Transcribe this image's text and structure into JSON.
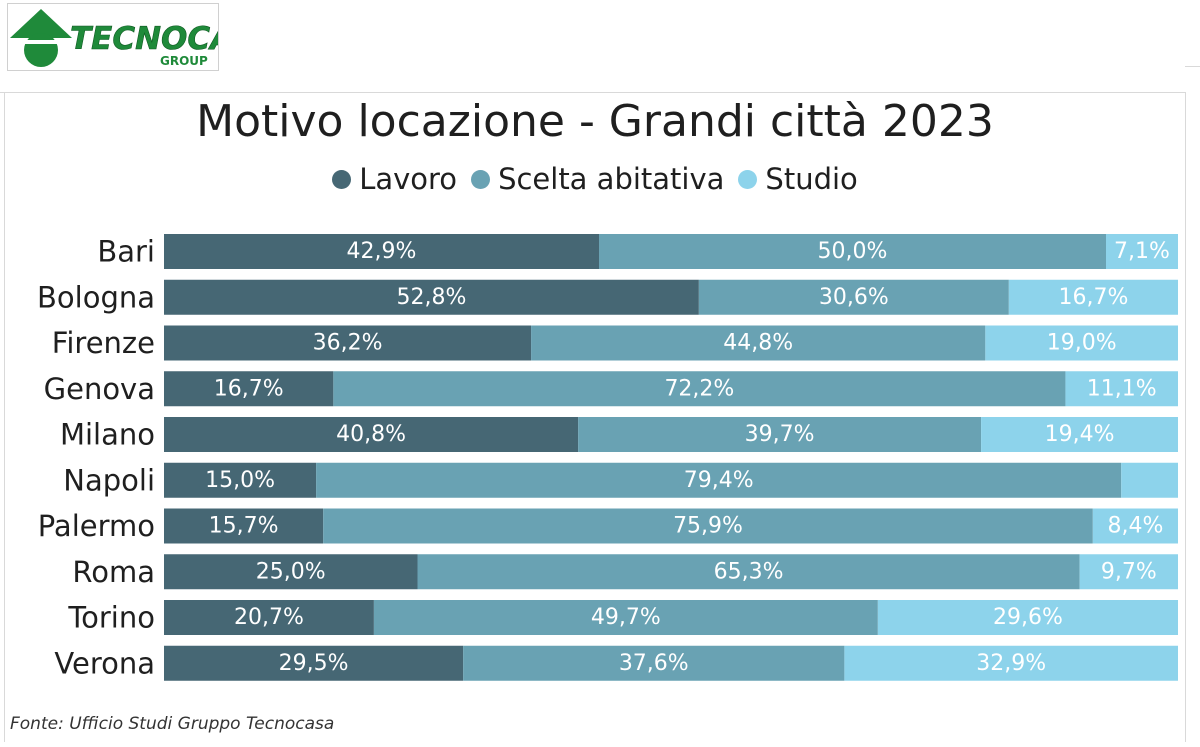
{
  "logo": {
    "brand": "TECNOCASA",
    "sub": "GROUP"
  },
  "source": "Fonte: Ufficio Studi Gruppo Tecnocasa",
  "colors": {
    "lavoro": "#466774",
    "scelta": "#69a2b3",
    "studio": "#8dd3eb"
  },
  "chart_data": {
    "type": "bar",
    "orientation": "horizontal",
    "stacked": true,
    "title": "Motivo locazione - Grandi città 2023",
    "legend_position": "top",
    "categories": [
      "Bari",
      "Bologna",
      "Firenze",
      "Genova",
      "Milano",
      "Napoli",
      "Palermo",
      "Roma",
      "Torino",
      "Verona"
    ],
    "series": [
      {
        "name": "Lavoro",
        "values": [
          42.9,
          52.8,
          36.2,
          16.7,
          40.8,
          15.0,
          15.7,
          25.0,
          20.7,
          29.5
        ],
        "labels": [
          "42,9%",
          "52,8%",
          "36,2%",
          "16,7%",
          "40,8%",
          "15,0%",
          "15,7%",
          "25,0%",
          "20,7%",
          "29,5%"
        ]
      },
      {
        "name": "Scelta abitativa",
        "values": [
          50.0,
          30.6,
          44.8,
          72.2,
          39.7,
          79.4,
          75.9,
          65.3,
          49.7,
          37.6
        ],
        "labels": [
          "50,0%",
          "30,6%",
          "44,8%",
          "72,2%",
          "39,7%",
          "79,4%",
          "75,9%",
          "65,3%",
          "49,7%",
          "37,6%"
        ]
      },
      {
        "name": "Studio",
        "values": [
          7.1,
          16.7,
          19.0,
          11.1,
          19.4,
          5.6,
          8.4,
          9.7,
          29.6,
          32.9
        ],
        "labels": [
          "7,1%",
          "16,7%",
          "19,0%",
          "11,1%",
          "19,4%",
          "",
          "8,4%",
          "9,7%",
          "29,6%",
          "32,9%"
        ]
      }
    ],
    "xlim": [
      0,
      100
    ],
    "grid": false
  }
}
